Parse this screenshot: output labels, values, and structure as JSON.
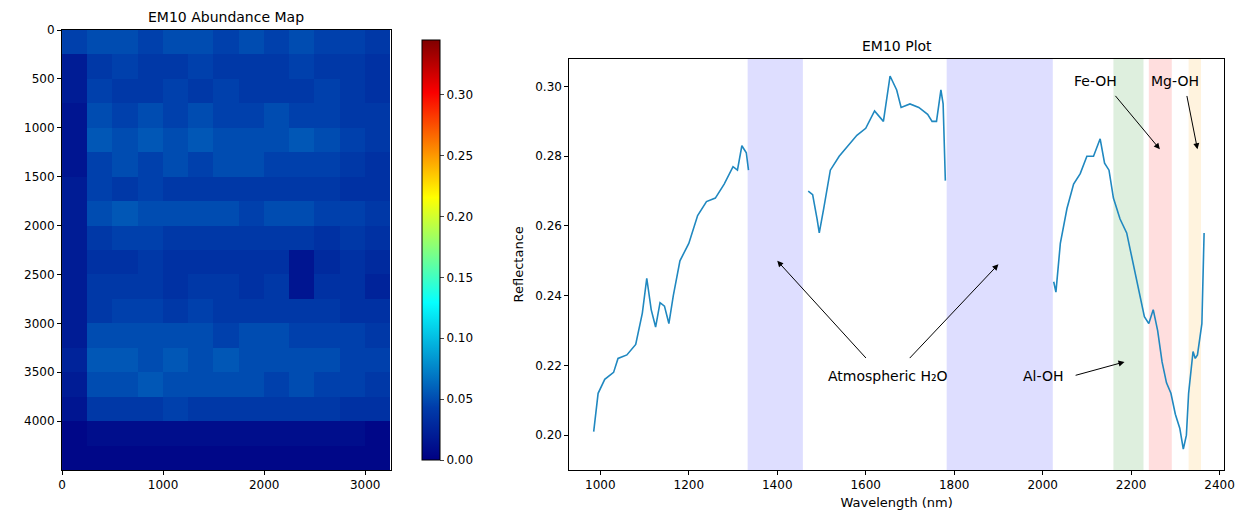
{
  "chart_data": [
    {
      "type": "heatmap",
      "title": "EM10 Abundance Map",
      "color": "jet",
      "x": [
        125,
        375,
        625,
        875,
        1125,
        1375,
        1625,
        1875,
        2125,
        2375,
        2625,
        2875,
        3125
      ],
      "y": [
        125,
        375,
        625,
        875,
        1125,
        1375,
        1625,
        1875,
        2125,
        2375,
        2625,
        2875,
        3125,
        3375,
        3625,
        3875,
        4125,
        4375
      ],
      "z": [
        [
          0.045,
          0.05,
          0.05,
          0.045,
          0.05,
          0.05,
          0.045,
          0.05,
          0.045,
          0.05,
          0.045,
          0.045,
          0.04
        ],
        [
          0.02,
          0.04,
          0.045,
          0.04,
          0.04,
          0.045,
          0.04,
          0.04,
          0.04,
          0.045,
          0.04,
          0.04,
          0.035
        ],
        [
          0.02,
          0.045,
          0.04,
          0.04,
          0.045,
          0.04,
          0.045,
          0.04,
          0.04,
          0.04,
          0.045,
          0.04,
          0.035
        ],
        [
          0.015,
          0.05,
          0.045,
          0.05,
          0.045,
          0.05,
          0.045,
          0.045,
          0.05,
          0.045,
          0.045,
          0.04,
          0.04
        ],
        [
          0.015,
          0.055,
          0.05,
          0.055,
          0.05,
          0.055,
          0.05,
          0.05,
          0.05,
          0.055,
          0.05,
          0.045,
          0.04
        ],
        [
          0.015,
          0.045,
          0.05,
          0.045,
          0.05,
          0.045,
          0.05,
          0.05,
          0.045,
          0.045,
          0.045,
          0.04,
          0.035
        ],
        [
          0.02,
          0.045,
          0.04,
          0.045,
          0.04,
          0.04,
          0.04,
          0.04,
          0.04,
          0.04,
          0.04,
          0.035,
          0.035
        ],
        [
          0.02,
          0.05,
          0.055,
          0.05,
          0.05,
          0.05,
          0.05,
          0.045,
          0.05,
          0.05,
          0.045,
          0.045,
          0.04
        ],
        [
          0.02,
          0.04,
          0.045,
          0.045,
          0.04,
          0.04,
          0.04,
          0.04,
          0.04,
          0.04,
          0.035,
          0.04,
          0.035
        ],
        [
          0.02,
          0.035,
          0.035,
          0.04,
          0.035,
          0.035,
          0.035,
          0.035,
          0.035,
          0.015,
          0.03,
          0.035,
          0.03
        ],
        [
          0.02,
          0.04,
          0.04,
          0.04,
          0.035,
          0.04,
          0.04,
          0.035,
          0.04,
          0.015,
          0.035,
          0.035,
          0.025
        ],
        [
          0.02,
          0.04,
          0.045,
          0.045,
          0.04,
          0.045,
          0.04,
          0.04,
          0.04,
          0.04,
          0.04,
          0.035,
          0.035
        ],
        [
          0.02,
          0.05,
          0.05,
          0.05,
          0.05,
          0.05,
          0.045,
          0.05,
          0.05,
          0.045,
          0.045,
          0.045,
          0.04
        ],
        [
          0.025,
          0.055,
          0.055,
          0.05,
          0.055,
          0.05,
          0.055,
          0.05,
          0.05,
          0.05,
          0.05,
          0.045,
          0.045
        ],
        [
          0.02,
          0.05,
          0.05,
          0.055,
          0.05,
          0.05,
          0.05,
          0.05,
          0.045,
          0.05,
          0.045,
          0.045,
          0.04
        ],
        [
          0.015,
          0.04,
          0.04,
          0.04,
          0.045,
          0.04,
          0.04,
          0.04,
          0.04,
          0.04,
          0.04,
          0.035,
          0.035
        ],
        [
          0.005,
          0.01,
          0.01,
          0.01,
          0.01,
          0.01,
          0.01,
          0.01,
          0.01,
          0.01,
          0.01,
          0.01,
          0.005
        ],
        [
          0.005,
          0.005,
          0.005,
          0.005,
          0.005,
          0.005,
          0.005,
          0.005,
          0.005,
          0.005,
          0.005,
          0.005,
          0.005
        ]
      ],
      "xlim": [
        0,
        3250
      ],
      "ylim": [
        4500,
        0
      ],
      "xticks": [
        0,
        1000,
        2000,
        3000
      ],
      "yticks": [
        0,
        500,
        1000,
        1500,
        2000,
        2500,
        3000,
        3500,
        4000
      ],
      "colorbar": {
        "range": [
          0,
          0.345
        ],
        "ticks": [
          {
            "value": 0,
            "label": "0.00"
          },
          {
            "value": 0.05,
            "label": "0.05"
          },
          {
            "value": 0.1,
            "label": "0.10"
          },
          {
            "value": 0.15,
            "label": "0.15"
          },
          {
            "value": 0.2,
            "label": "0.20"
          },
          {
            "value": 0.25,
            "label": "0.25"
          },
          {
            "value": 0.3,
            "label": "0.30"
          }
        ]
      }
    },
    {
      "type": "line",
      "title": "EM10 Plot",
      "x_label": "Wavelength (nm)",
      "y_label": "Reflectance",
      "color": "#2088c0",
      "x": [
        985,
        995,
        1010,
        1030,
        1040,
        1060,
        1080,
        1095,
        1105,
        1115,
        1125,
        1135,
        1145,
        1155,
        1165,
        1180,
        1200,
        1220,
        1240,
        1260,
        1280,
        1300,
        1310,
        1320,
        1330,
        1335,
        1400,
        1470,
        1480,
        1490,
        1495,
        1505,
        1520,
        1540,
        1560,
        1580,
        1600,
        1620,
        1640,
        1655,
        1670,
        1680,
        1700,
        1720,
        1740,
        1750,
        1760,
        1770,
        1775,
        1780,
        1900,
        2025,
        2030,
        2040,
        2055,
        2070,
        2085,
        2100,
        2115,
        2130,
        2140,
        2150,
        2160,
        2175,
        2190,
        2200,
        2210,
        2220,
        2230,
        2240,
        2250,
        2260,
        2270,
        2280,
        2290,
        2300,
        2310,
        2318,
        2325,
        2330,
        2340,
        2345,
        2350,
        2360,
        2365
      ],
      "values": [
        0.201,
        0.212,
        0.216,
        0.218,
        0.222,
        0.223,
        0.226,
        0.235,
        0.245,
        0.236,
        0.231,
        0.238,
        0.237,
        0.232,
        0.24,
        0.25,
        0.255,
        0.263,
        0.267,
        0.268,
        0.272,
        0.277,
        0.276,
        0.283,
        0.281,
        0.276,
        null,
        0.27,
        0.269,
        0.262,
        0.258,
        0.265,
        0.276,
        0.28,
        0.283,
        0.286,
        0.288,
        0.293,
        0.29,
        0.303,
        0.299,
        0.294,
        0.295,
        0.294,
        0.292,
        0.29,
        0.29,
        0.299,
        0.295,
        0.273,
        null,
        0.244,
        0.241,
        0.255,
        0.265,
        0.272,
        0.275,
        0.28,
        0.28,
        0.285,
        0.278,
        0.276,
        0.268,
        0.262,
        0.258,
        0.252,
        0.246,
        0.24,
        0.234,
        0.232,
        0.236,
        0.23,
        0.221,
        0.215,
        0.212,
        0.206,
        0.202,
        0.196,
        0.2,
        0.212,
        0.224,
        0.222,
        0.223,
        0.232,
        0.258
      ],
      "xlim": [
        930,
        2410
      ],
      "xticks": [
        1000,
        1200,
        1400,
        1600,
        1800,
        2000,
        2200,
        2400
      ],
      "ylim": [
        0.19,
        0.308
      ],
      "yticks": [
        {
          "value": 0.2,
          "label": "0.20"
        },
        {
          "value": 0.22,
          "label": "0.22"
        },
        {
          "value": 0.24,
          "label": "0.24"
        },
        {
          "value": 0.26,
          "label": "0.26"
        },
        {
          "value": 0.28,
          "label": "0.28"
        },
        {
          "value": 0.3,
          "label": "0.30"
        }
      ],
      "grid": false,
      "bands": [
        {
          "x0": 1333,
          "x1": 1458,
          "color": "#0000ff"
        },
        {
          "x0": 1783,
          "x1": 2023,
          "color": "#0000ff"
        },
        {
          "x0": 2160,
          "x1": 2228,
          "color": "#008000"
        },
        {
          "x0": 2240,
          "x1": 2292,
          "color": "#ff0000"
        },
        {
          "x0": 2330,
          "x1": 2358,
          "color": "#ffa500"
        }
      ],
      "annotations": [
        {
          "text": "Atmospheric H₂O",
          "x": 1650,
          "y": 0.217,
          "arrows": [
            {
              "from": [
                1605,
                0.2215
              ],
              "to": [
                1400,
                0.25
              ]
            },
            {
              "from": [
                1695,
                0.2215
              ],
              "to": [
                1900,
                0.249
              ]
            }
          ]
        },
        {
          "text": "Al-OH",
          "x": 2000,
          "y": 0.217,
          "arrows": [
            {
              "from": [
                2070,
                0.217
              ],
              "to": [
                2185,
                0.221
              ]
            }
          ]
        },
        {
          "text": "Fe-OH",
          "x": 2120,
          "y": 0.3015,
          "arrows": [
            {
              "from": [
                2160,
                0.298
              ],
              "to": [
                2265,
                0.282
              ]
            }
          ]
        },
        {
          "text": "Mg-OH",
          "x": 2300,
          "y": 0.3015,
          "arrows": [
            {
              "from": [
                2325,
                0.298
              ],
              "to": [
                2350,
                0.282
              ]
            }
          ]
        }
      ]
    }
  ]
}
